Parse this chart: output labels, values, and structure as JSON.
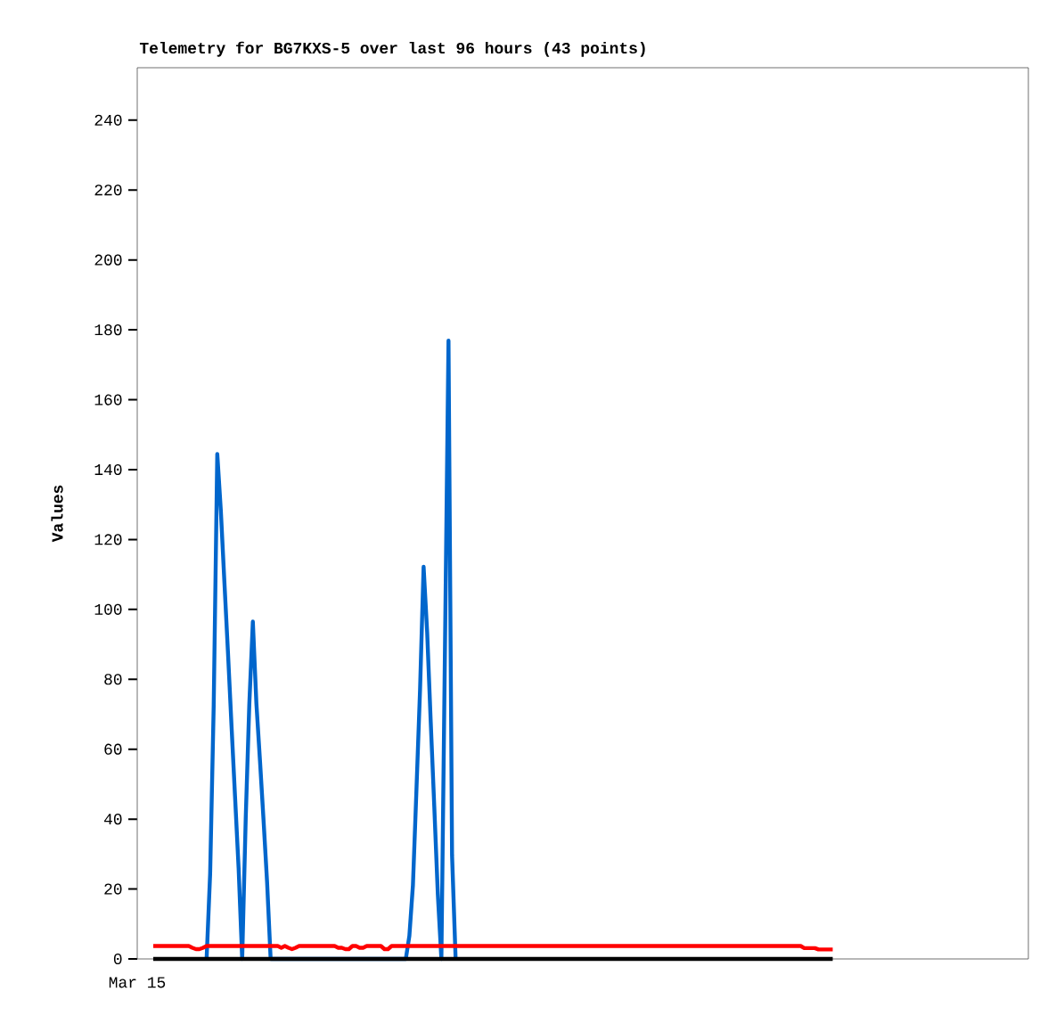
{
  "chart_data": {
    "type": "line",
    "title": "Telemetry for BG7KXS-5 over last 96 hours (43 points)",
    "ylabel": "Values",
    "annotations": [
      "Mar 15"
    ],
    "categories": [
      null,
      null,
      null,
      null,
      null,
      null,
      null,
      null,
      null,
      null,
      null,
      null,
      null,
      null,
      null,
      null,
      null,
      null,
      null,
      null,
      null,
      null,
      null,
      null,
      null,
      null,
      null,
      null,
      null,
      null,
      null,
      null,
      null,
      null,
      null,
      null,
      null,
      null,
      null,
      null,
      null,
      null,
      null,
      null,
      null,
      null,
      null,
      null,
      null,
      null,
      null,
      null,
      null,
      null,
      null,
      null,
      null,
      null,
      null,
      null,
      null,
      null,
      null,
      null,
      null,
      null,
      null,
      null,
      null,
      null,
      null,
      null,
      null,
      null,
      null,
      null,
      null,
      null,
      null,
      null,
      null,
      null,
      null,
      null,
      null,
      null,
      null,
      null,
      null,
      null,
      null,
      null,
      null,
      null,
      null,
      null,
      null,
      null,
      null,
      null,
      null,
      null,
      null,
      null,
      null,
      null,
      null,
      null,
      null,
      null,
      null,
      null,
      null,
      null,
      null,
      null,
      null,
      null,
      null,
      null,
      null,
      null,
      null,
      null,
      null,
      null,
      null,
      null,
      null,
      null,
      null,
      null,
      null,
      null,
      null,
      null,
      null,
      null,
      null,
      null,
      null,
      null,
      null,
      null,
      null,
      null,
      null,
      null,
      null,
      null,
      null,
      null,
      null,
      null,
      null,
      null,
      null,
      null,
      null,
      null,
      null,
      null,
      null,
      null,
      null,
      null,
      null,
      null,
      null,
      null,
      null,
      null,
      null,
      null,
      null,
      null,
      null,
      null,
      null,
      null,
      null,
      null,
      null,
      null,
      null,
      null,
      null,
      null,
      null,
      null,
      null,
      null
    ],
    "ylim": [
      0,
      255
    ],
    "yticks": [
      0,
      20,
      40,
      60,
      80,
      100,
      120,
      140,
      160,
      180,
      200,
      220,
      240
    ],
    "marker": "none",
    "line_style": "solid",
    "series": [
      {
        "color": "#0066cc",
        "values": [
          null,
          null,
          null,
          null,
          null,
          null,
          null,
          null,
          null,
          null,
          null,
          null,
          null,
          null,
          null,
          0,
          24.5,
          72.7,
          144.5,
          128.3,
          107.9,
          87.8,
          66.8,
          46.3,
          25.9,
          0,
          40.3,
          72.7,
          96.5,
          73,
          56.8,
          39.8,
          22,
          0,
          null,
          null,
          null,
          null,
          null,
          null,
          null,
          null,
          null,
          null,
          null,
          null,
          null,
          null,
          null,
          null,
          null,
          null,
          null,
          null,
          null,
          null,
          null,
          null,
          null,
          null,
          null,
          null,
          null,
          null,
          null,
          null,
          null,
          null,
          null,
          null,
          null,
          0,
          6.6,
          21.1,
          48.7,
          77,
          112.2,
          93.5,
          67.9,
          43.6,
          18.5,
          0,
          88.4,
          176.9,
          29.6,
          0,
          null,
          null,
          null,
          null,
          null,
          null,
          null,
          null,
          null,
          null,
          null,
          null,
          null,
          null,
          null,
          null,
          null,
          null,
          null,
          null,
          null,
          null,
          null,
          null,
          null,
          null,
          null,
          null,
          null,
          null,
          null,
          null,
          null,
          null,
          null,
          null,
          null,
          null,
          null,
          null,
          null,
          null,
          null,
          null,
          null,
          null,
          null,
          null,
          null,
          null,
          null,
          null,
          null,
          null,
          null,
          null,
          null,
          null,
          null,
          null,
          null,
          null,
          null,
          null,
          null,
          null,
          null,
          null,
          null,
          null,
          null,
          null,
          null,
          null,
          null,
          null,
          null,
          null,
          null,
          null,
          null,
          null,
          null,
          null,
          null,
          null,
          null,
          null,
          null,
          null,
          null,
          null,
          null,
          null,
          null,
          null,
          null,
          null,
          null,
          null,
          null,
          null,
          null,
          null,
          null,
          null
        ]
      },
      {
        "color": "#ff0000",
        "values": [
          3.7,
          3.7,
          3.7,
          3.7,
          3.7,
          3.7,
          3.7,
          3.7,
          3.7,
          3.7,
          3.7,
          3.2,
          2.8,
          2.8,
          3.2,
          3.7,
          3.7,
          3.7,
          3.7,
          3.7,
          3.7,
          3.7,
          3.7,
          3.7,
          3.7,
          3.7,
          3.7,
          3.7,
          3.7,
          3.7,
          3.7,
          3.7,
          3.7,
          3.7,
          3.7,
          3.7,
          3.2,
          3.7,
          3.2,
          2.8,
          3.2,
          3.7,
          3.7,
          3.7,
          3.7,
          3.7,
          3.7,
          3.7,
          3.7,
          3.7,
          3.7,
          3.7,
          3.2,
          3.2,
          2.8,
          2.8,
          3.7,
          3.7,
          3.2,
          3.2,
          3.7,
          3.7,
          3.7,
          3.7,
          3.7,
          2.8,
          2.8,
          3.7,
          3.7,
          3.7,
          3.7,
          3.7,
          3.7,
          3.7,
          3.7,
          3.7,
          3.7,
          3.7,
          3.7,
          3.7,
          3.7,
          3.7,
          3.7,
          3.7,
          3.7,
          3.7,
          3.7,
          3.7,
          3.7,
          3.7,
          3.7,
          3.7,
          3.7,
          3.7,
          3.7,
          3.7,
          3.7,
          3.7,
          3.7,
          3.7,
          3.7,
          3.7,
          3.7,
          3.7,
          3.7,
          3.7,
          3.7,
          3.7,
          3.7,
          3.7,
          3.7,
          3.7,
          3.7,
          3.7,
          3.7,
          3.7,
          3.7,
          3.7,
          3.7,
          3.7,
          3.7,
          3.7,
          3.7,
          3.7,
          3.7,
          3.7,
          3.7,
          3.7,
          3.7,
          3.7,
          3.7,
          3.7,
          3.7,
          3.7,
          3.7,
          3.7,
          3.7,
          3.7,
          3.7,
          3.7,
          3.7,
          3.7,
          3.7,
          3.7,
          3.7,
          3.7,
          3.7,
          3.7,
          3.7,
          3.7,
          3.7,
          3.7,
          3.7,
          3.7,
          3.7,
          3.7,
          3.7,
          3.7,
          3.7,
          3.7,
          3.7,
          3.7,
          3.7,
          3.7,
          3.7,
          3.7,
          3.7,
          3.7,
          3.7,
          3.7,
          3.7,
          3.7,
          3.7,
          3.7,
          3.7,
          3.7,
          3.7,
          3.7,
          3.7,
          3.7,
          3.7,
          3.7,
          3.7,
          3.1,
          3.1,
          3.1,
          3.1,
          2.7,
          2.7,
          2.7,
          2.7,
          2.7
        ]
      },
      {
        "color": "#000000",
        "values": [
          0,
          0,
          0,
          0,
          0,
          0,
          0,
          0,
          0,
          0,
          0,
          0,
          0,
          0,
          0,
          0,
          0,
          0,
          0,
          0,
          0,
          0,
          0,
          0,
          0,
          0,
          0,
          0,
          0,
          0,
          0,
          0,
          0,
          0,
          0,
          0,
          0,
          0,
          0,
          0,
          0,
          0,
          0,
          0,
          0,
          0,
          0,
          0,
          0,
          0,
          0,
          0,
          0,
          0,
          0,
          0,
          0,
          0,
          0,
          0,
          0,
          0,
          0,
          0,
          0,
          0,
          0,
          0,
          0,
          0,
          0,
          0,
          0,
          0,
          0,
          0,
          0,
          0,
          0,
          0,
          0,
          0,
          0,
          0,
          0,
          0,
          0,
          0,
          0,
          0,
          0,
          0,
          0,
          0,
          0,
          0,
          0,
          0,
          0,
          0,
          0,
          0,
          0,
          0,
          0,
          0,
          0,
          0,
          0,
          0,
          0,
          0,
          0,
          0,
          0,
          0,
          0,
          0,
          0,
          0,
          0,
          0,
          0,
          0,
          0,
          0,
          0,
          0,
          0,
          0,
          0,
          0,
          0,
          0,
          0,
          0,
          0,
          0,
          0,
          0,
          0,
          0,
          0,
          0,
          0,
          0,
          0,
          0,
          0,
          0,
          0,
          0,
          0,
          0,
          0,
          0,
          0,
          0,
          0,
          0,
          0,
          0,
          0,
          0,
          0,
          0,
          0,
          0,
          0,
          0,
          0,
          0,
          0,
          0,
          0,
          0,
          0,
          0,
          0,
          0,
          0,
          0,
          0,
          0,
          0,
          0,
          0,
          0,
          0,
          0,
          0,
          0
        ]
      }
    ]
  }
}
